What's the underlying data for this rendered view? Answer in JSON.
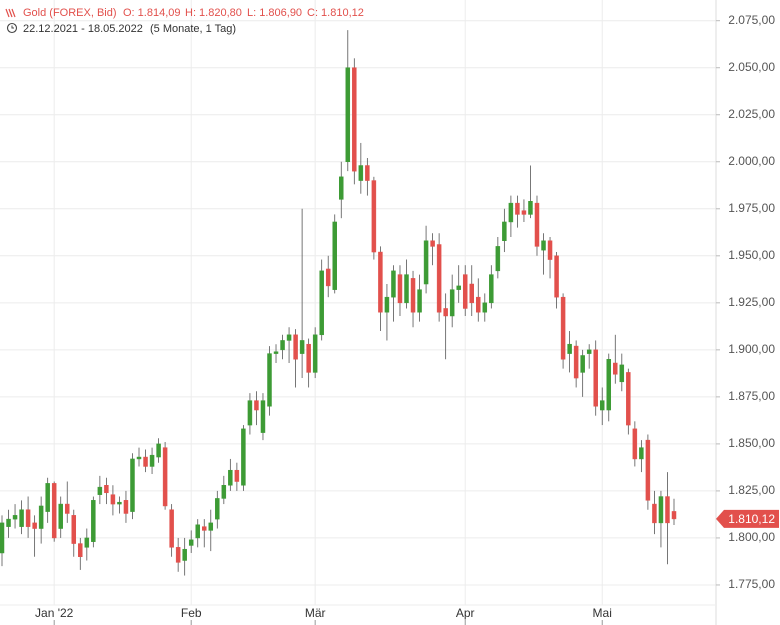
{
  "chart_data": {
    "type": "candlestick",
    "title": "Gold (FOREX, Bid)",
    "header_open": "O: 1.814,09",
    "header_high": "H: 1.820,80",
    "header_low": "L: 1.806,90",
    "header_close": "C: 1.810,12",
    "date_range": "22.12.2021 - 18.05.2022",
    "period": "(5 Monate, 1 Tag)",
    "up_color": "#3d9b35",
    "down_color": "#e2504c",
    "grid": true,
    "categories": [
      null,
      null,
      null,
      null,
      null,
      null,
      null,
      null,
      "Jan '22",
      null,
      null,
      null,
      null,
      null,
      null,
      null,
      null,
      null,
      null,
      null,
      null,
      null,
      null,
      null,
      null,
      null,
      null,
      null,
      null,
      "Feb",
      null,
      null,
      null,
      null,
      null,
      null,
      null,
      null,
      null,
      null,
      null,
      null,
      null,
      null,
      null,
      null,
      null,
      null,
      "Mär",
      null,
      null,
      null,
      null,
      null,
      null,
      null,
      null,
      null,
      null,
      null,
      null,
      null,
      null,
      null,
      null,
      null,
      null,
      null,
      null,
      null,
      null,
      "Apr",
      null,
      null,
      null,
      null,
      null,
      null,
      null,
      null,
      null,
      null,
      null,
      null,
      null,
      null,
      null,
      null,
      null,
      null,
      null,
      null,
      "Mai",
      null,
      null,
      null,
      null,
      null,
      null,
      null,
      null,
      null,
      null,
      null
    ],
    "open": [
      1792,
      1806,
      1810,
      1806,
      1815,
      1808,
      1805,
      1814,
      1829,
      1805,
      1818,
      1812,
      1797,
      1795,
      1798,
      1823,
      1828,
      1823,
      1818,
      1820,
      1814,
      1842,
      1843,
      1838,
      1843,
      1848,
      1815,
      1795,
      1788,
      1796,
      1800,
      1806,
      1804,
      1810,
      1821,
      1828,
      1836,
      1828,
      1860,
      1873,
      1856,
      1870,
      1898,
      1900,
      1905,
      1908,
      1898,
      1903,
      1888,
      1908,
      1943,
      1932,
      1980,
      2000,
      2050,
      1990,
      1998,
      1990,
      1952,
      1920,
      1928,
      1940,
      1925,
      1938,
      1920,
      1935,
      1958,
      1956,
      1922,
      1918,
      1932,
      1940,
      1935,
      1928,
      1920,
      1925,
      1942,
      1958,
      1968,
      1978,
      1974,
      1972,
      1978,
      1953,
      1958,
      1950,
      1928,
      1898,
      1902,
      1888,
      1898,
      1900,
      1868,
      1868,
      1893,
      1883,
      1888,
      1858,
      1842,
      1852,
      1818,
      1808,
      1822,
      1814.09
    ],
    "high": [
      1812,
      1815,
      1818,
      1820,
      1822,
      1812,
      1822,
      1832,
      1830,
      1822,
      1830,
      1815,
      1800,
      1805,
      1822,
      1833,
      1832,
      1828,
      1822,
      1825,
      1845,
      1848,
      1847,
      1848,
      1853,
      1851,
      1818,
      1800,
      1800,
      1804,
      1810,
      1810,
      1815,
      1825,
      1833,
      1842,
      1840,
      1860,
      1877,
      1878,
      1877,
      1902,
      1903,
      1908,
      1912,
      1911,
      1975,
      1906,
      1912,
      1948,
      1950,
      1972,
      2000,
      2070,
      2055,
      2010,
      2002,
      1992,
      1955,
      1935,
      1945,
      1945,
      1948,
      1942,
      1940,
      1966,
      1962,
      1962,
      1930,
      1940,
      1945,
      1945,
      1945,
      1938,
      1930,
      1945,
      1960,
      1975,
      1982,
      1982,
      1980,
      1998,
      1982,
      1962,
      1960,
      1952,
      1930,
      1910,
      1905,
      1900,
      1903,
      1905,
      1880,
      1898,
      1908,
      1898,
      1890,
      1862,
      1852,
      1855,
      1825,
      1825,
      1835,
      1820.8
    ],
    "low": [
      1785,
      1800,
      1805,
      1802,
      1800,
      1790,
      1797,
      1808,
      1798,
      1800,
      1808,
      1790,
      1783,
      1788,
      1795,
      1818,
      1818,
      1812,
      1813,
      1808,
      1810,
      1838,
      1835,
      1834,
      1840,
      1815,
      1790,
      1782,
      1780,
      1792,
      1795,
      1795,
      1793,
      1805,
      1818,
      1825,
      1825,
      1825,
      1855,
      1860,
      1852,
      1865,
      1893,
      1895,
      1893,
      1880,
      1885,
      1880,
      1885,
      1905,
      1928,
      1930,
      1970,
      1995,
      1988,
      1983,
      1982,
      1948,
      1910,
      1905,
      1915,
      1918,
      1922,
      1912,
      1915,
      1930,
      1945,
      1915,
      1895,
      1912,
      1925,
      1918,
      1918,
      1915,
      1915,
      1922,
      1938,
      1952,
      1960,
      1965,
      1968,
      1970,
      1950,
      1940,
      1938,
      1922,
      1890,
      1888,
      1880,
      1875,
      1890,
      1865,
      1860,
      1862,
      1882,
      1878,
      1855,
      1838,
      1835,
      1815,
      1802,
      1795,
      1786,
      1806.9
    ],
    "close": [
      1808,
      1810,
      1812,
      1815,
      1806,
      1805,
      1817,
      1829,
      1800,
      1818,
      1813,
      1797,
      1790,
      1800,
      1820,
      1827,
      1824,
      1818,
      1819,
      1813,
      1842,
      1843,
      1838,
      1844,
      1850,
      1817,
      1795,
      1787,
      1794,
      1799,
      1807,
      1804,
      1808,
      1821,
      1828,
      1836,
      1830,
      1858,
      1873,
      1868,
      1873,
      1898,
      1899,
      1905,
      1908,
      1895,
      1905,
      1888,
      1908,
      1942,
      1934,
      1968,
      1992,
      2050,
      1995,
      1998,
      1990,
      1952,
      1920,
      1928,
      1942,
      1925,
      1940,
      1920,
      1932,
      1958,
      1955,
      1920,
      1918,
      1932,
      1934,
      1922,
      1925,
      1920,
      1925,
      1940,
      1955,
      1968,
      1978,
      1972,
      1972,
      1979,
      1955,
      1958,
      1948,
      1928,
      1895,
      1903,
      1885,
      1897,
      1900,
      1870,
      1873,
      1895,
      1887,
      1892,
      1860,
      1842,
      1848,
      1820,
      1808,
      1822,
      1808,
      1810.12
    ],
    "ylim": [
      1767,
      2086
    ],
    "yticks": [
      {
        "value": 1775,
        "label": "1.775,00"
      },
      {
        "value": 1800,
        "label": "1.800,00"
      },
      {
        "value": 1825,
        "label": "1.825,00"
      },
      {
        "value": 1850,
        "label": "1.850,00"
      },
      {
        "value": 1875,
        "label": "1.875,00"
      },
      {
        "value": 1900,
        "label": "1.900,00"
      },
      {
        "value": 1925,
        "label": "1.925,00"
      },
      {
        "value": 1950,
        "label": "1.950,00"
      },
      {
        "value": 1975,
        "label": "1.975,00"
      },
      {
        "value": 2000,
        "label": "2.000,00"
      },
      {
        "value": 2025,
        "label": "2.025,00"
      },
      {
        "value": 2050,
        "label": "2.050,00"
      },
      {
        "value": 2075,
        "label": "2.075,00"
      }
    ],
    "last_price": {
      "value": 1810.12,
      "label": "1.810,12"
    }
  }
}
